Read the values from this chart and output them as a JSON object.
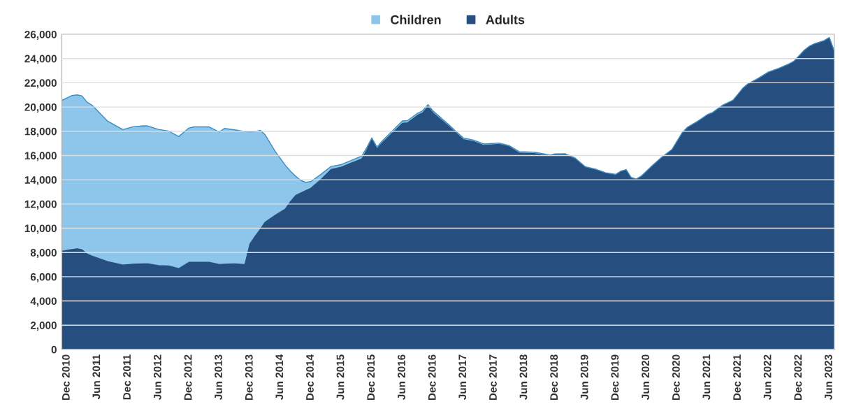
{
  "chart_data": {
    "type": "area",
    "stacked": true,
    "x": [
      "2010-11",
      "2011-01",
      "2011-02",
      "2011-03",
      "2011-04",
      "2011-05",
      "2011-08",
      "2011-11",
      "2012-01",
      "2012-03",
      "2012-04",
      "2012-06",
      "2012-08",
      "2012-10",
      "2012-12",
      "2013-01",
      "2013-04",
      "2013-06",
      "2013-07",
      "2013-09",
      "2013-11",
      "2013-12",
      "2014-01",
      "2014-02",
      "2014-03",
      "2014-05",
      "2014-07",
      "2014-08",
      "2014-09",
      "2014-10",
      "2014-11",
      "2014-12",
      "2015-02",
      "2015-04",
      "2015-06",
      "2015-08",
      "2015-10",
      "2015-11",
      "2015-12",
      "2016-01",
      "2016-02",
      "2016-06",
      "2016-07",
      "2016-09",
      "2016-10",
      "2016-11",
      "2016-12",
      "2017-03",
      "2017-05",
      "2017-06",
      "2017-08",
      "2017-10",
      "2018-01",
      "2018-03",
      "2018-05",
      "2018-08",
      "2018-11",
      "2018-12",
      "2019-02",
      "2019-04",
      "2019-06",
      "2019-08",
      "2019-10",
      "2019-12",
      "2020-01",
      "2020-02",
      "2020-03",
      "2020-04",
      "2020-05",
      "2020-07",
      "2020-09",
      "2020-11",
      "2021-01",
      "2021-02",
      "2021-04",
      "2021-06",
      "2021-07",
      "2021-09",
      "2021-11",
      "2021-12",
      "2022-01",
      "2022-02",
      "2022-04",
      "2022-06",
      "2022-08",
      "2022-10",
      "2022-11",
      "2023-01",
      "2023-02",
      "2023-03",
      "2023-05",
      "2023-06",
      "2023-07"
    ],
    "series": [
      {
        "name": "Adults",
        "color": "#264f80",
        "values": [
          8100,
          8250,
          8310,
          8230,
          7880,
          7700,
          7250,
          6960,
          7030,
          7060,
          7060,
          6920,
          6890,
          6670,
          7190,
          7190,
          7190,
          7000,
          7040,
          7060,
          7000,
          8690,
          9330,
          9900,
          10480,
          11060,
          11580,
          12200,
          12700,
          12900,
          13100,
          13300,
          14040,
          14850,
          15040,
          15380,
          15710,
          16440,
          17310,
          16540,
          17040,
          18650,
          18690,
          19330,
          19520,
          20040,
          19520,
          18460,
          17700,
          17310,
          17160,
          16830,
          16920,
          16730,
          16200,
          16160,
          15970,
          16060,
          16080,
          15700,
          15000,
          14810,
          14520,
          14390,
          14660,
          14770,
          14140,
          14000,
          14240,
          15040,
          15810,
          16440,
          17820,
          18270,
          18750,
          19330,
          19500,
          20120,
          20530,
          21020,
          21550,
          21900,
          22330,
          22850,
          23150,
          23520,
          23750,
          24650,
          24990,
          25180,
          25460,
          25710,
          24580
        ]
      },
      {
        "name": "Children",
        "color": "#8ec5eb",
        "values": [
          12450,
          12700,
          12690,
          12690,
          12520,
          12450,
          11600,
          11180,
          11340,
          11390,
          11370,
          11230,
          11130,
          10890,
          11080,
          11170,
          11170,
          10940,
          11190,
          11060,
          10980,
          9260,
          8650,
          8180,
          7250,
          5290,
          3620,
          2500,
          1590,
          1050,
          690,
          550,
          420,
          250,
          210,
          220,
          240,
          210,
          140,
          160,
          160,
          200,
          190,
          170,
          180,
          160,
          160,
          140,
          130,
          140,
          110,
          120,
          110,
          100,
          120,
          110,
          80,
          70,
          70,
          100,
          80,
          70,
          60,
          60,
          60,
          60,
          60,
          60,
          60,
          60,
          60,
          60,
          60,
          50,
          50,
          40,
          40,
          40,
          30,
          30,
          30,
          30,
          30,
          30,
          30,
          20,
          20,
          20,
          20,
          20,
          20,
          20,
          20
        ]
      }
    ],
    "ylim": [
      0,
      26000
    ],
    "yticks": [
      0,
      {
        "value": 2000,
        "label": "2,000"
      },
      {
        "value": 4000,
        "label": "4,000"
      },
      {
        "value": 6000,
        "label": "6,000"
      },
      {
        "value": 8000,
        "label": "8,000"
      },
      {
        "value": 10000,
        "label": "10,000"
      },
      {
        "value": 12000,
        "label": "12,000"
      },
      {
        "value": 14000,
        "label": "14,000"
      },
      {
        "value": 16000,
        "label": "16,000"
      },
      {
        "value": 18000,
        "label": "18,000"
      },
      {
        "value": 20000,
        "label": "20,000"
      },
      {
        "value": 22000,
        "label": "22,000"
      },
      {
        "value": 24000,
        "label": "24,000"
      },
      {
        "value": 26000,
        "label": "26,000"
      }
    ],
    "xlim": [
      "2010-11",
      "2023-07"
    ],
    "xticks": [
      {
        "value": "2010-12",
        "label": "Dec 2010"
      },
      {
        "value": "2011-06",
        "label": "Jun 2011"
      },
      {
        "value": "2011-12",
        "label": "Dec 2011"
      },
      {
        "value": "2012-06",
        "label": "Jun 2012"
      },
      {
        "value": "2012-12",
        "label": "Dec 2012"
      },
      {
        "value": "2013-06",
        "label": "Jun 2013"
      },
      {
        "value": "2013-12",
        "label": "Dec 2013"
      },
      {
        "value": "2014-06",
        "label": "Jun 2014"
      },
      {
        "value": "2014-12",
        "label": "Dec 2014"
      },
      {
        "value": "2015-06",
        "label": "Jun 2015"
      },
      {
        "value": "2015-12",
        "label": "Dec 2015"
      },
      {
        "value": "2016-06",
        "label": "Jun 2016"
      },
      {
        "value": "2016-12",
        "label": "Dec 2016"
      },
      {
        "value": "2017-06",
        "label": "Jun 2017"
      },
      {
        "value": "2017-12",
        "label": "Dec 2017"
      },
      {
        "value": "2018-06",
        "label": "Jun 2018"
      },
      {
        "value": "2018-12",
        "label": "Dec 2018"
      },
      {
        "value": "2019-06",
        "label": "Jun 2019"
      },
      {
        "value": "2019-12",
        "label": "Dec 2019"
      },
      {
        "value": "2020-06",
        "label": "Jun 2020"
      },
      {
        "value": "2020-12",
        "label": "Dec 2020"
      },
      {
        "value": "2021-06",
        "label": "Jun 2021"
      },
      {
        "value": "2021-12",
        "label": "Dec 2021"
      },
      {
        "value": "2022-06",
        "label": "Jun 2022"
      },
      {
        "value": "2022-12",
        "label": "Dec 2022"
      },
      {
        "value": "2023-06",
        "label": "Jun 2023"
      }
    ],
    "grid": "y",
    "legend": "top"
  }
}
